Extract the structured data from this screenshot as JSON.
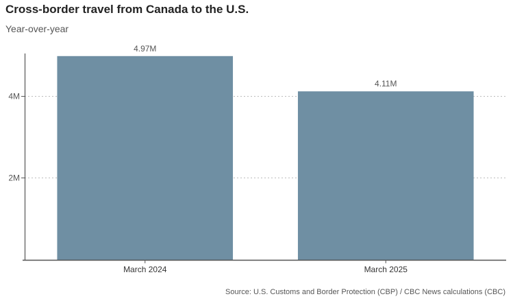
{
  "chart_data": {
    "type": "bar",
    "title": "Cross-border travel from Canada to the U.S.",
    "subtitle": "Year-over-year",
    "source": "Source: U.S. Customs and Border Protection (CBP) / CBC News calculations (CBC)",
    "categories": [
      "March 2024",
      "March 2025"
    ],
    "values": [
      4970000,
      4110000
    ],
    "data_labels": [
      "4.97M",
      "4.11M"
    ],
    "xlabel": "",
    "ylabel": "",
    "ylim": [
      0,
      5000000
    ],
    "yticks": [
      {
        "value": 2000000,
        "label": "2M"
      },
      {
        "value": 4000000,
        "label": "4M"
      }
    ],
    "grid": true,
    "legend": "none",
    "colors": {
      "bar": "#6f8fa3",
      "grid": "#bbbbbb",
      "axis": "#555555"
    }
  }
}
